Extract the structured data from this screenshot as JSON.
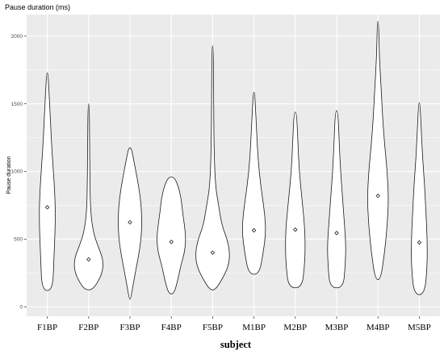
{
  "chart_data": {
    "type": "violin",
    "title": "Pause duration (ms)",
    "xlabel": "subject",
    "ylabel": "Pause duration",
    "ylim": [
      -70,
      2160
    ],
    "yticks": [
      0,
      500,
      1000,
      1500,
      2000
    ],
    "grid": true,
    "categories": [
      "F1BP",
      "F2BP",
      "F3BP",
      "F4BP",
      "F5BP",
      "M1BP",
      "M2BP",
      "M3BP",
      "M4BP",
      "M5BP"
    ],
    "means": [
      735,
      350,
      625,
      480,
      400,
      565,
      570,
      545,
      820,
      475
    ],
    "ranges": [
      [
        120,
        1730
      ],
      [
        125,
        1500
      ],
      [
        55,
        1175
      ],
      [
        95,
        960
      ],
      [
        125,
        1930
      ],
      [
        240,
        1585
      ],
      [
        140,
        1440
      ],
      [
        140,
        1450
      ],
      [
        200,
        2110
      ],
      [
        90,
        1510
      ]
    ],
    "density_profiles": [
      [
        [
          120,
          8
        ],
        [
          350,
          10
        ],
        [
          600,
          12
        ],
        [
          760,
          12
        ],
        [
          950,
          10
        ],
        [
          1150,
          7
        ],
        [
          1350,
          5
        ],
        [
          1550,
          3
        ],
        [
          1730,
          1
        ]
      ],
      [
        [
          125,
          3
        ],
        [
          150,
          10
        ],
        [
          250,
          21
        ],
        [
          350,
          22
        ],
        [
          450,
          14
        ],
        [
          550,
          7
        ],
        [
          700,
          3
        ],
        [
          900,
          2
        ],
        [
          1200,
          1.5
        ],
        [
          1500,
          1
        ]
      ],
      [
        [
          55,
          1
        ],
        [
          200,
          6
        ],
        [
          350,
          12
        ],
        [
          500,
          17
        ],
        [
          650,
          18
        ],
        [
          800,
          16
        ],
        [
          950,
          11
        ],
        [
          1100,
          5
        ],
        [
          1175,
          2
        ]
      ],
      [
        [
          95,
          4
        ],
        [
          200,
          10
        ],
        [
          300,
          14
        ],
        [
          400,
          20
        ],
        [
          500,
          22
        ],
        [
          600,
          20
        ],
        [
          700,
          17
        ],
        [
          800,
          15
        ],
        [
          900,
          10
        ],
        [
          960,
          4
        ]
      ],
      [
        [
          125,
          4
        ],
        [
          200,
          14
        ],
        [
          300,
          24
        ],
        [
          400,
          26
        ],
        [
          500,
          22
        ],
        [
          600,
          14
        ],
        [
          750,
          9
        ],
        [
          900,
          4
        ],
        [
          1200,
          2
        ],
        [
          1600,
          1.5
        ],
        [
          1930,
          1
        ]
      ],
      [
        [
          240,
          8
        ],
        [
          400,
          14
        ],
        [
          550,
          18
        ],
        [
          700,
          16
        ],
        [
          900,
          10
        ],
        [
          1100,
          6
        ],
        [
          1300,
          4
        ],
        [
          1450,
          2.5
        ],
        [
          1585,
          1
        ]
      ],
      [
        [
          140,
          10
        ],
        [
          300,
          14
        ],
        [
          450,
          15
        ],
        [
          600,
          14
        ],
        [
          800,
          10
        ],
        [
          1000,
          6
        ],
        [
          1200,
          4
        ],
        [
          1440,
          2
        ]
      ],
      [
        [
          140,
          10
        ],
        [
          300,
          13
        ],
        [
          450,
          14
        ],
        [
          600,
          12
        ],
        [
          800,
          9
        ],
        [
          1000,
          6
        ],
        [
          1200,
          4
        ],
        [
          1450,
          2
        ]
      ],
      [
        [
          200,
          4
        ],
        [
          400,
          10
        ],
        [
          600,
          14
        ],
        [
          800,
          16
        ],
        [
          1000,
          14
        ],
        [
          1200,
          10
        ],
        [
          1400,
          7
        ],
        [
          1600,
          5
        ],
        [
          1850,
          2
        ],
        [
          2110,
          1
        ]
      ],
      [
        [
          90,
          8
        ],
        [
          300,
          12
        ],
        [
          500,
          12
        ],
        [
          700,
          10
        ],
        [
          900,
          8
        ],
        [
          1100,
          5
        ],
        [
          1300,
          3
        ],
        [
          1510,
          1
        ]
      ]
    ],
    "violin_fill": "#ffffff",
    "violin_stroke": "#1a1a1a",
    "panel_background": "#ebebeb",
    "gridline_color": "#ffffff"
  }
}
